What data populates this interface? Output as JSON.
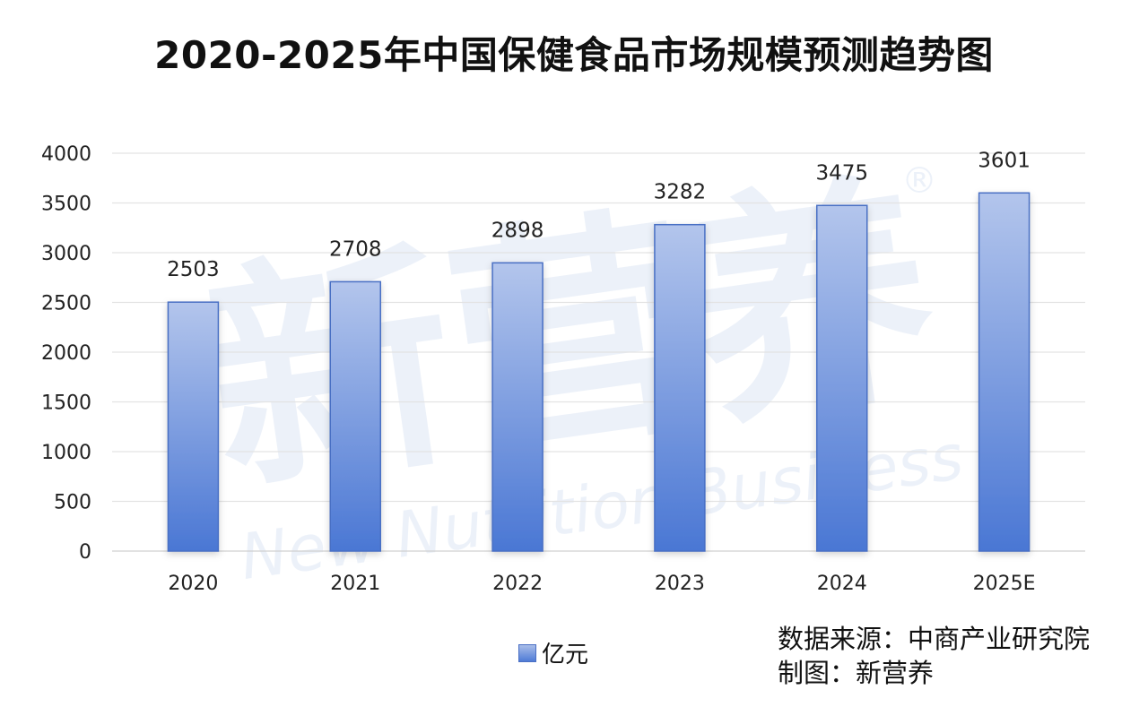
{
  "chart_data": {
    "type": "bar",
    "title": "2020-2025年中国保健食品市场规模预测趋势图",
    "categories": [
      "2020",
      "2021",
      "2022",
      "2023",
      "2024",
      "2025E"
    ],
    "series": [
      {
        "name": "亿元",
        "values": [
          2503,
          2708,
          2898,
          3282,
          3475,
          3601
        ]
      }
    ],
    "ylim": [
      0,
      4000
    ],
    "yticks": [
      0,
      500,
      1000,
      1500,
      2000,
      2500,
      3000,
      3500,
      4000
    ],
    "grid": true,
    "legend": "bottom",
    "bar_color": "#4f7bd6"
  },
  "footer": {
    "source": "数据来源：中商产业研究院",
    "credit": "制图：新营养"
  },
  "watermark": {
    "cn": "新营养",
    "en": "New Nutrition Business",
    "mark": "®"
  }
}
